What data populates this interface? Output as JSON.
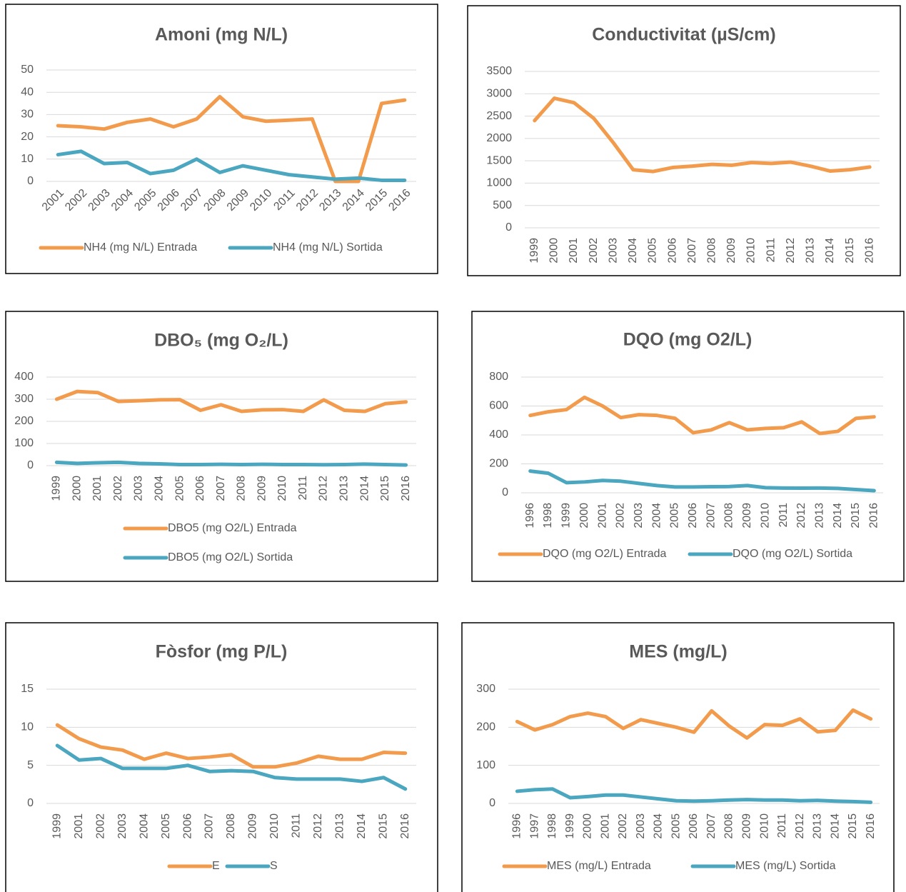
{
  "chart_data": [
    {
      "type": "line",
      "title": "Amoni (mg N/L)",
      "categories": [
        "2001",
        "2002",
        "2003",
        "2004",
        "2005",
        "2006",
        "2007",
        "2008",
        "2009",
        "2010",
        "2011",
        "2012",
        "2013",
        "2014",
        "2015",
        "2016"
      ],
      "series": [
        {
          "name": "NH4 (mg N/L) Entrada",
          "color": "#f39b4c",
          "values": [
            25,
            24.5,
            23.5,
            26.5,
            28,
            24.5,
            28,
            38,
            29,
            27,
            27.5,
            28,
            0,
            0,
            35,
            36.5
          ]
        },
        {
          "name": "NH4 (mg N/L) Sortida",
          "color": "#4ba6bf",
          "values": [
            12,
            13.5,
            8,
            8.5,
            3.5,
            5,
            10,
            4,
            7,
            5,
            3,
            2,
            1,
            1.5,
            0.5,
            0.5
          ]
        }
      ],
      "ylim": [
        0,
        50
      ],
      "yticks": [
        0,
        10,
        20,
        30,
        40,
        50
      ],
      "grid": true,
      "legend": "bottom"
    },
    {
      "type": "line",
      "title": "Conductivitat (µS/cm)",
      "categories": [
        "1999",
        "2000",
        "2001",
        "2002",
        "2003",
        "2004",
        "2005",
        "2006",
        "2007",
        "2008",
        "2009",
        "2010",
        "2011",
        "2012",
        "2013",
        "2014",
        "2015",
        "2016"
      ],
      "series": [
        {
          "color": "#f39b4c",
          "values": [
            2400,
            2900,
            2800,
            2450,
            1900,
            1300,
            1260,
            1350,
            1380,
            1420,
            1400,
            1460,
            1440,
            1470,
            1380,
            1270,
            1300,
            1360
          ]
        }
      ],
      "ylim": [
        0,
        3500
      ],
      "yticks": [
        0,
        500,
        1000,
        1500,
        2000,
        2500,
        3000,
        3500
      ],
      "grid": true
    },
    {
      "type": "line",
      "title": "DBO₅ (mg O₂/L)",
      "categories": [
        "1999",
        "2000",
        "2001",
        "2002",
        "2003",
        "2004",
        "2005",
        "2006",
        "2007",
        "2008",
        "2009",
        "2010",
        "2011",
        "2012",
        "2013",
        "2014",
        "2015",
        "2016"
      ],
      "series": [
        {
          "name": "DBO5 (mg O2/L) Entrada",
          "color": "#f39b4c",
          "values": [
            300,
            335,
            330,
            290,
            293,
            297,
            298,
            250,
            275,
            245,
            252,
            253,
            245,
            297,
            250,
            245,
            280,
            288
          ]
        },
        {
          "name": "DBO5 (mg O2/L) Sortida",
          "color": "#4ba6bf",
          "values": [
            15,
            10,
            13,
            15,
            10,
            8,
            5,
            5,
            6,
            5,
            6,
            5,
            5,
            4,
            5,
            7,
            5,
            3
          ]
        }
      ],
      "ylim": [
        0,
        400
      ],
      "yticks": [
        0,
        100,
        200,
        300,
        400
      ],
      "grid": true,
      "legend": "bottom"
    },
    {
      "type": "line",
      "title": "DQO (mg O2/L)",
      "categories": [
        "1996",
        "1998",
        "1999",
        "2000",
        "2001",
        "2002",
        "2003",
        "2004",
        "2005",
        "2006",
        "2007",
        "2008",
        "2009",
        "2010",
        "2011",
        "2012",
        "2013",
        "2014",
        "2015",
        "2016"
      ],
      "series": [
        {
          "name": "DQO (mg O2/L) Entrada",
          "color": "#f39b4c",
          "values": [
            535,
            560,
            575,
            660,
            600,
            520,
            540,
            535,
            515,
            415,
            435,
            485,
            435,
            445,
            450,
            490,
            410,
            425,
            515,
            525
          ]
        },
        {
          "name": "DQO (mg O2/L) Sortida",
          "color": "#4ba6bf",
          "values": [
            150,
            135,
            70,
            75,
            85,
            80,
            65,
            50,
            40,
            40,
            42,
            43,
            50,
            35,
            33,
            32,
            33,
            30,
            22,
            15
          ]
        }
      ],
      "ylim": [
        0,
        800
      ],
      "yticks": [
        0,
        200,
        400,
        600,
        800
      ],
      "grid": true,
      "legend": "bottom"
    },
    {
      "type": "line",
      "title": "Fòsfor (mg P/L)",
      "categories": [
        "1999",
        "2001",
        "2002",
        "2003",
        "2004",
        "2005",
        "2006",
        "2007",
        "2008",
        "2009",
        "2010",
        "2011",
        "2012",
        "2013",
        "2014",
        "2015",
        "2016"
      ],
      "series": [
        {
          "name": "E",
          "color": "#f39b4c",
          "values": [
            10.3,
            8.5,
            7.4,
            7.0,
            5.8,
            6.6,
            5.9,
            6.1,
            6.4,
            4.8,
            4.8,
            5.3,
            6.2,
            5.8,
            5.8,
            6.7,
            6.6
          ]
        },
        {
          "name": "S",
          "color": "#4ba6bf",
          "values": [
            7.6,
            5.7,
            5.9,
            4.6,
            4.6,
            4.6,
            5.0,
            4.2,
            4.3,
            4.2,
            3.4,
            3.2,
            3.2,
            3.2,
            2.9,
            3.4,
            1.9
          ]
        }
      ],
      "ylim": [
        0,
        15
      ],
      "yticks": [
        0,
        5,
        10,
        15
      ],
      "grid": true,
      "legend": "bottom"
    },
    {
      "type": "line",
      "title": "MES (mg/L)",
      "categories": [
        "1996",
        "1997",
        "1998",
        "1999",
        "2000",
        "2001",
        "2002",
        "2003",
        "2004",
        "2005",
        "2006",
        "2007",
        "2008",
        "2009",
        "2010",
        "2011",
        "2012",
        "2013",
        "2014",
        "2015",
        "2016"
      ],
      "series": [
        {
          "name": "MES (mg/L) Entrada",
          "color": "#f39b4c",
          "values": [
            215,
            193,
            207,
            228,
            237,
            228,
            197,
            220,
            210,
            200,
            187,
            243,
            203,
            172,
            207,
            205,
            222,
            188,
            192,
            245,
            222
          ]
        },
        {
          "name": "MES (mg/L) Sortida",
          "color": "#4ba6bf",
          "values": [
            32,
            36,
            38,
            15,
            18,
            22,
            22,
            17,
            12,
            7,
            6,
            7,
            9,
            10,
            9,
            9,
            7,
            8,
            6,
            5,
            3
          ]
        }
      ],
      "ylim": [
        0,
        300
      ],
      "yticks": [
        0,
        100,
        200,
        300
      ],
      "grid": true,
      "legend": "bottom"
    }
  ]
}
